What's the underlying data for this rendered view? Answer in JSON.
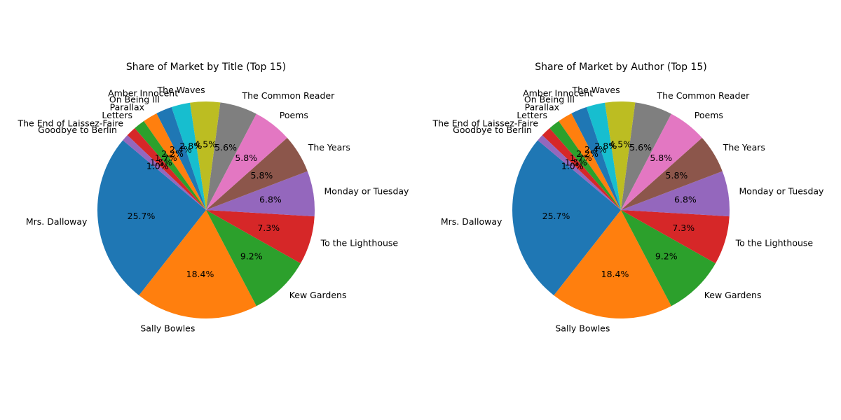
{
  "chart_data": [
    {
      "type": "pie",
      "title": "Share of Market by Title (Top 15)",
      "start_angle_deg": 140,
      "direction": "counterclockwise",
      "slices": [
        {
          "label": "Mrs. Dalloway",
          "value": 25.7,
          "pct_label": "25.7%",
          "color": "#1f77b4"
        },
        {
          "label": "Sally Bowles",
          "value": 18.4,
          "pct_label": "18.4%",
          "color": "#ff7f0e"
        },
        {
          "label": "Kew Gardens",
          "value": 9.2,
          "pct_label": "9.2%",
          "color": "#2ca02c"
        },
        {
          "label": "To the Lighthouse",
          "value": 7.3,
          "pct_label": "7.3%",
          "color": "#d62728"
        },
        {
          "label": "Monday or Tuesday",
          "value": 6.8,
          "pct_label": "6.8%",
          "color": "#9467bd"
        },
        {
          "label": "The Years",
          "value": 5.8,
          "pct_label": "5.8%",
          "color": "#8c564b"
        },
        {
          "label": "Poems",
          "value": 5.8,
          "pct_label": "5.8%",
          "color": "#e377c2"
        },
        {
          "label": "The Common Reader",
          "value": 5.6,
          "pct_label": "5.6%",
          "color": "#7f7f7f"
        },
        {
          "label": "The Waves",
          "value": 4.5,
          "pct_label": "4.5%",
          "color": "#bcbd22"
        },
        {
          "label": "Amber Innocent",
          "value": 2.8,
          "pct_label": "2.8%",
          "color": "#17becf"
        },
        {
          "label": "On Being Ill",
          "value": 2.4,
          "pct_label": "2.4%",
          "color": "#1f77b4"
        },
        {
          "label": "Parallax",
          "value": 2.2,
          "pct_label": "2.2%",
          "color": "#ff7f0e"
        },
        {
          "label": "Letters",
          "value": 1.7,
          "pct_label": "1.7%",
          "color": "#2ca02c"
        },
        {
          "label": "The End of Laissez-Faire",
          "value": 1.5,
          "pct_label": "1.5%",
          "color": "#d62728"
        },
        {
          "label": "Goodbye to Berlin",
          "value": 1.0,
          "pct_label": "1.0%",
          "color": "#9467bd"
        }
      ]
    },
    {
      "type": "pie",
      "title": "Share of Market by Author (Top 15)",
      "start_angle_deg": 140,
      "direction": "counterclockwise",
      "slices": [
        {
          "label": "Mrs. Dalloway",
          "value": 25.7,
          "pct_label": "25.7%",
          "color": "#1f77b4"
        },
        {
          "label": "Sally Bowles",
          "value": 18.4,
          "pct_label": "18.4%",
          "color": "#ff7f0e"
        },
        {
          "label": "Kew Gardens",
          "value": 9.2,
          "pct_label": "9.2%",
          "color": "#2ca02c"
        },
        {
          "label": "To the Lighthouse",
          "value": 7.3,
          "pct_label": "7.3%",
          "color": "#d62728"
        },
        {
          "label": "Monday or Tuesday",
          "value": 6.8,
          "pct_label": "6.8%",
          "color": "#9467bd"
        },
        {
          "label": "The Years",
          "value": 5.8,
          "pct_label": "5.8%",
          "color": "#8c564b"
        },
        {
          "label": "Poems",
          "value": 5.8,
          "pct_label": "5.8%",
          "color": "#e377c2"
        },
        {
          "label": "The Common Reader",
          "value": 5.6,
          "pct_label": "5.6%",
          "color": "#7f7f7f"
        },
        {
          "label": "The Waves",
          "value": 4.5,
          "pct_label": "4.5%",
          "color": "#bcbd22"
        },
        {
          "label": "Amber Innocent",
          "value": 2.8,
          "pct_label": "2.8%",
          "color": "#17becf"
        },
        {
          "label": "On Being Ill",
          "value": 2.4,
          "pct_label": "2.4%",
          "color": "#1f77b4"
        },
        {
          "label": "Parallax",
          "value": 2.2,
          "pct_label": "2.2%",
          "color": "#ff7f0e"
        },
        {
          "label": "Letters",
          "value": 1.7,
          "pct_label": "1.7%",
          "color": "#2ca02c"
        },
        {
          "label": "The End of Laissez-Faire",
          "value": 1.5,
          "pct_label": "1.5%",
          "color": "#d62728"
        },
        {
          "label": "Goodbye to Berlin",
          "value": 1.0,
          "pct_label": "1.0%",
          "color": "#9467bd"
        }
      ]
    }
  ]
}
